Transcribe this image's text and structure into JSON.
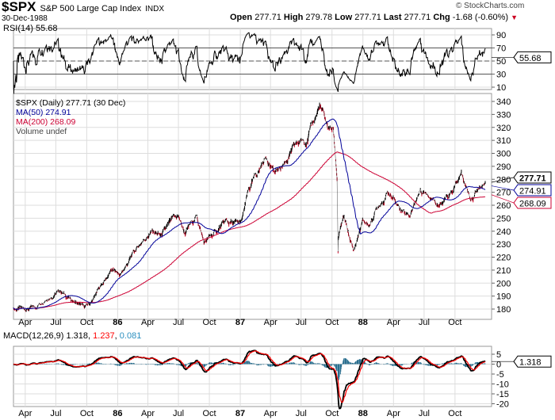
{
  "header": {
    "symbol": "$SPX",
    "name": "S&P 500 Large Cap Index",
    "exchange": "INDX",
    "date": "30-Dec-1988",
    "copyright": "© StockCharts.com",
    "open_label": "Open",
    "open": "277.71",
    "high_label": "High",
    "high": "279.78",
    "low_label": "Low",
    "low": "277.71",
    "last_label": "Last",
    "last": "277.71",
    "chg_label": "Chg",
    "chg": "-1.68 (-0.60%)",
    "chg_icon": "triangle-down-icon"
  },
  "colors": {
    "price": "#000000",
    "down": "#cc0022",
    "ma50": "#000099",
    "ma200": "#cc0033",
    "macd": "#000000",
    "signal": "#ff0000",
    "histogram": "#2a6f8f",
    "grid": "#dddddd"
  },
  "chart_data": [
    {
      "type": "line",
      "panel": "RSI",
      "label": "RSI(14) 55.68",
      "last": "55.68",
      "ylim": [
        0,
        100
      ],
      "ticks": [
        10,
        30,
        50,
        70,
        90
      ],
      "levels": [
        30,
        50,
        70
      ]
    },
    {
      "type": "ohlc",
      "panel": "price",
      "legend": [
        "$SPX (Daily) 277.71 (30 Dec)",
        "MA(50) 274.91",
        "MA(200) 268.09",
        "Volume undef"
      ],
      "last": "277.71",
      "ma50_last": "274.91",
      "ma200_last": "268.09",
      "ylim": [
        170,
        345
      ],
      "ticks": [
        180,
        190,
        200,
        210,
        220,
        230,
        240,
        250,
        260,
        270,
        280,
        290,
        300,
        310,
        320,
        330,
        340
      ],
      "closes": [
        [
          "1985-02-25",
          180
        ],
        [
          "1985-04-01",
          180
        ],
        [
          "1985-05-01",
          181
        ],
        [
          "1985-06-01",
          189
        ],
        [
          "1985-07-15",
          194
        ],
        [
          "1985-08-15",
          187
        ],
        [
          "1985-09-25",
          181
        ],
        [
          "1985-10-15",
          185
        ],
        [
          "1985-11-15",
          199
        ],
        [
          "1985-12-15",
          210
        ],
        [
          "1986-01-10",
          206
        ],
        [
          "1986-02-15",
          222
        ],
        [
          "1986-03-20",
          234
        ],
        [
          "1986-04-15",
          240
        ],
        [
          "1986-05-10",
          236
        ],
        [
          "1986-06-15",
          248
        ],
        [
          "1986-07-01",
          251
        ],
        [
          "1986-07-20",
          238
        ],
        [
          "1986-08-25",
          252
        ],
        [
          "1986-09-15",
          231
        ],
        [
          "1986-10-15",
          238
        ],
        [
          "1986-11-20",
          247
        ],
        [
          "1986-12-20",
          245
        ],
        [
          "1987-01-05",
          246
        ],
        [
          "1987-01-25",
          270
        ],
        [
          "1987-02-20",
          284
        ],
        [
          "1987-03-20",
          298
        ],
        [
          "1987-04-15",
          284
        ],
        [
          "1987-05-15",
          294
        ],
        [
          "1987-06-20",
          307
        ],
        [
          "1987-07-20",
          312
        ],
        [
          "1987-08-25",
          336
        ],
        [
          "1987-09-20",
          319
        ],
        [
          "1987-10-05",
          318
        ],
        [
          "1987-10-16",
          282
        ],
        [
          "1987-10-19",
          225
        ],
        [
          "1987-10-20",
          236
        ],
        [
          "1987-11-05",
          250
        ],
        [
          "1987-12-04",
          224
        ],
        [
          "1987-12-31",
          247
        ],
        [
          "1988-01-20",
          245
        ],
        [
          "1988-02-20",
          262
        ],
        [
          "1988-03-18",
          270
        ],
        [
          "1988-04-15",
          259
        ],
        [
          "1988-05-20",
          253
        ],
        [
          "1988-06-20",
          272
        ],
        [
          "1988-07-15",
          270
        ],
        [
          "1988-08-20",
          260
        ],
        [
          "1988-09-20",
          268
        ],
        [
          "1988-10-20",
          283
        ],
        [
          "1988-11-18",
          265
        ],
        [
          "1988-12-15",
          275
        ],
        [
          "1988-12-30",
          277.71
        ]
      ]
    },
    {
      "type": "line+histogram",
      "panel": "MACD",
      "label": "MACD(12,26,9)",
      "macd": "1.318",
      "signal": "1.237",
      "histogram": "0.081",
      "ylim": [
        -24,
        8
      ],
      "ticks": [
        5,
        0,
        -5,
        -10,
        -15,
        -20
      ]
    }
  ],
  "xaxis": [
    {
      "label": "Apr",
      "date": "1985-04-01"
    },
    {
      "label": "Jul",
      "date": "1985-07-01"
    },
    {
      "label": "Oct",
      "date": "1985-10-01"
    },
    {
      "label": "86",
      "date": "1986-01-01",
      "year": true
    },
    {
      "label": "Apr",
      "date": "1986-04-01"
    },
    {
      "label": "Jul",
      "date": "1986-07-01"
    },
    {
      "label": "Oct",
      "date": "1986-10-01"
    },
    {
      "label": "87",
      "date": "1987-01-01",
      "year": true
    },
    {
      "label": "Apr",
      "date": "1987-04-01"
    },
    {
      "label": "Jul",
      "date": "1987-07-01"
    },
    {
      "label": "Oct",
      "date": "1987-10-01"
    },
    {
      "label": "88",
      "date": "1988-01-01",
      "year": true
    },
    {
      "label": "Apr",
      "date": "1988-04-01"
    },
    {
      "label": "Jul",
      "date": "1988-07-01"
    },
    {
      "label": "Oct",
      "date": "1988-10-01"
    }
  ]
}
